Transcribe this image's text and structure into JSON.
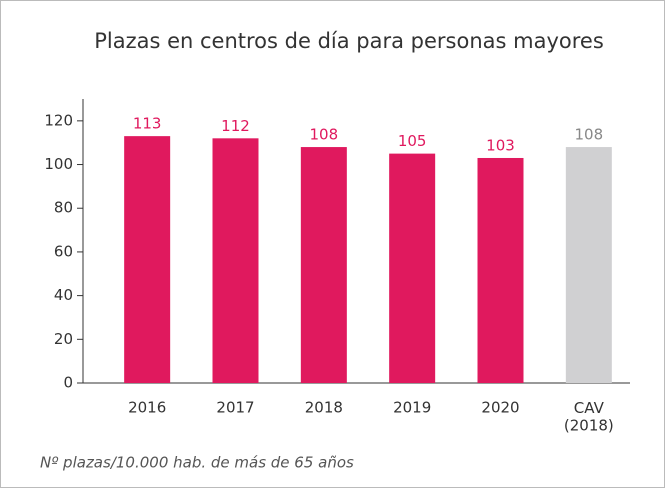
{
  "chart_data": {
    "type": "bar",
    "title": "Plazas en centros de día para personas mayores",
    "categories": [
      "2016",
      "2017",
      "2018",
      "2019",
      "2020",
      "CAV\n(2018)"
    ],
    "values": [
      113,
      112,
      108,
      105,
      103,
      108
    ],
    "colors": [
      "#e0195e",
      "#e0195e",
      "#e0195e",
      "#e0195e",
      "#e0195e",
      "#d0d0d2"
    ],
    "label_colors": [
      "#e0195e",
      "#e0195e",
      "#e0195e",
      "#e0195e",
      "#e0195e",
      "#888888"
    ],
    "ylim": [
      0,
      130
    ],
    "yticks": [
      0,
      20,
      40,
      60,
      80,
      100,
      120
    ],
    "note": "Nº plazas/10.000 hab. de más de 65 años"
  }
}
